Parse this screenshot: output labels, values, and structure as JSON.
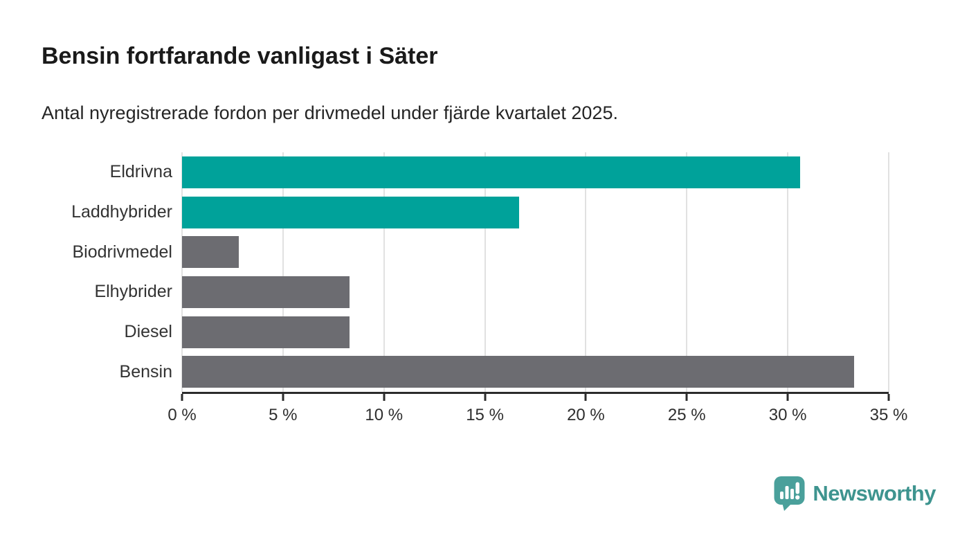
{
  "header": {
    "title": "Bensin fortfarande vanligast i Säter",
    "subtitle": "Antal nyregistrerade fordon per drivmedel under fjärde kvartalet 2025."
  },
  "chart_data": {
    "type": "bar",
    "orientation": "horizontal",
    "title": "Bensin fortfarande vanligast i Säter",
    "subtitle": "Antal nyregistrerade fordon per drivmedel under fjärde kvartalet 2025.",
    "categories": [
      "Eldrivna",
      "Laddhybrider",
      "Biodrivmedel",
      "Elhybrider",
      "Diesel",
      "Bensin"
    ],
    "values": [
      30.6,
      16.7,
      2.8,
      8.3,
      8.3,
      33.3
    ],
    "value_unit": "%",
    "bar_colors": [
      "#00a29a",
      "#00a29a",
      "#6c6c71",
      "#6c6c71",
      "#6c6c71",
      "#6c6c71"
    ],
    "xlabel": "",
    "ylabel": "",
    "xlim": [
      0,
      35
    ],
    "x_ticks": [
      0,
      5,
      10,
      15,
      20,
      25,
      30,
      35
    ],
    "x_tick_labels": [
      "0 %",
      "5 %",
      "10 %",
      "15 %",
      "20 %",
      "25 %",
      "30 %",
      "35 %"
    ],
    "grid": "vertical-gridlines",
    "legend": "none"
  },
  "footer": {
    "brand_name": "Newsworthy",
    "logo_icon": "newsworthy-speech-bubble-chart-icon"
  },
  "colors": {
    "accent_teal": "#00a29a",
    "neutral_gray": "#6c6c71",
    "logo_teal": "#4aa09b",
    "logo_text_teal": "#3e948f",
    "gridline": "#e1e1e1",
    "axis": "#2b2b2b",
    "text": "#1a1a1a",
    "background": "#ffffff"
  }
}
